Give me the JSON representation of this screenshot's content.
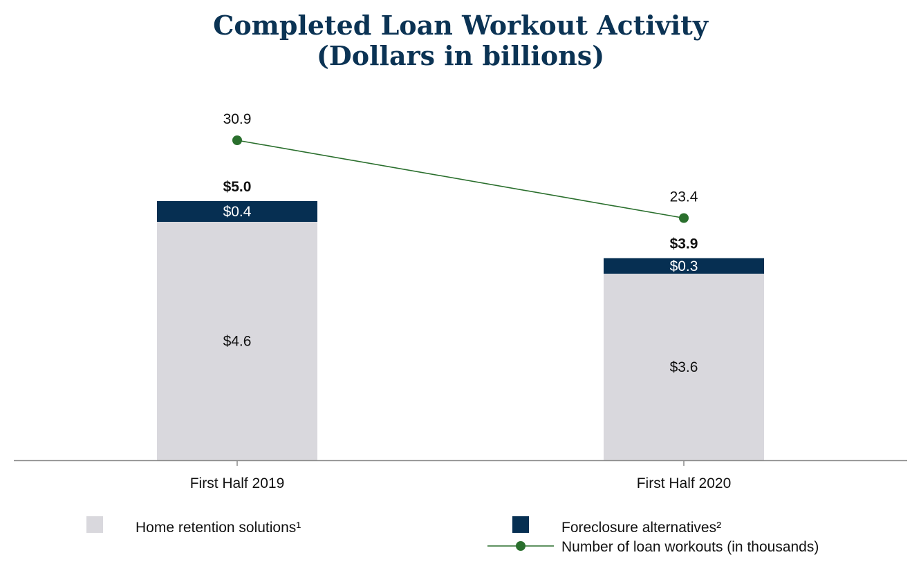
{
  "title_line1": "Completed Loan Workout Activity",
  "title_line2": "(Dollars in billions)",
  "colors": {
    "title": "#0b3354",
    "home_retention": "#d9d8dd",
    "foreclosure_alt": "#062f52",
    "line": "#2a6f2d",
    "axis": "#8a8a8a",
    "text": "#111111",
    "inside_label_dark_bar": "#ffffff"
  },
  "chart_data": {
    "type": "bar",
    "stacked": true,
    "title": "Completed Loan Workout Activity (Dollars in billions)",
    "categories": [
      "First Half 2019",
      "First Half 2020"
    ],
    "series": [
      {
        "name": "Home retention solutions¹",
        "values": [
          4.6,
          3.6
        ],
        "labels": [
          "$4.6",
          "$3.6"
        ],
        "color": "#d9d8dd"
      },
      {
        "name": "Foreclosure alternatives²",
        "values": [
          0.4,
          0.3
        ],
        "labels": [
          "$0.4",
          "$0.3"
        ],
        "color": "#062f52"
      }
    ],
    "totals": {
      "values": [
        5.0,
        3.9
      ],
      "labels": [
        "$5.0",
        "$3.9"
      ]
    },
    "line_series": {
      "name": "Number of loan workouts (in thousands)",
      "values": [
        30.9,
        23.4
      ],
      "labels": [
        "30.9",
        "23.4"
      ],
      "color": "#2a6f2d",
      "marker": "circle"
    },
    "y_axis_visible": false,
    "grid": false,
    "legend_position": "bottom"
  }
}
